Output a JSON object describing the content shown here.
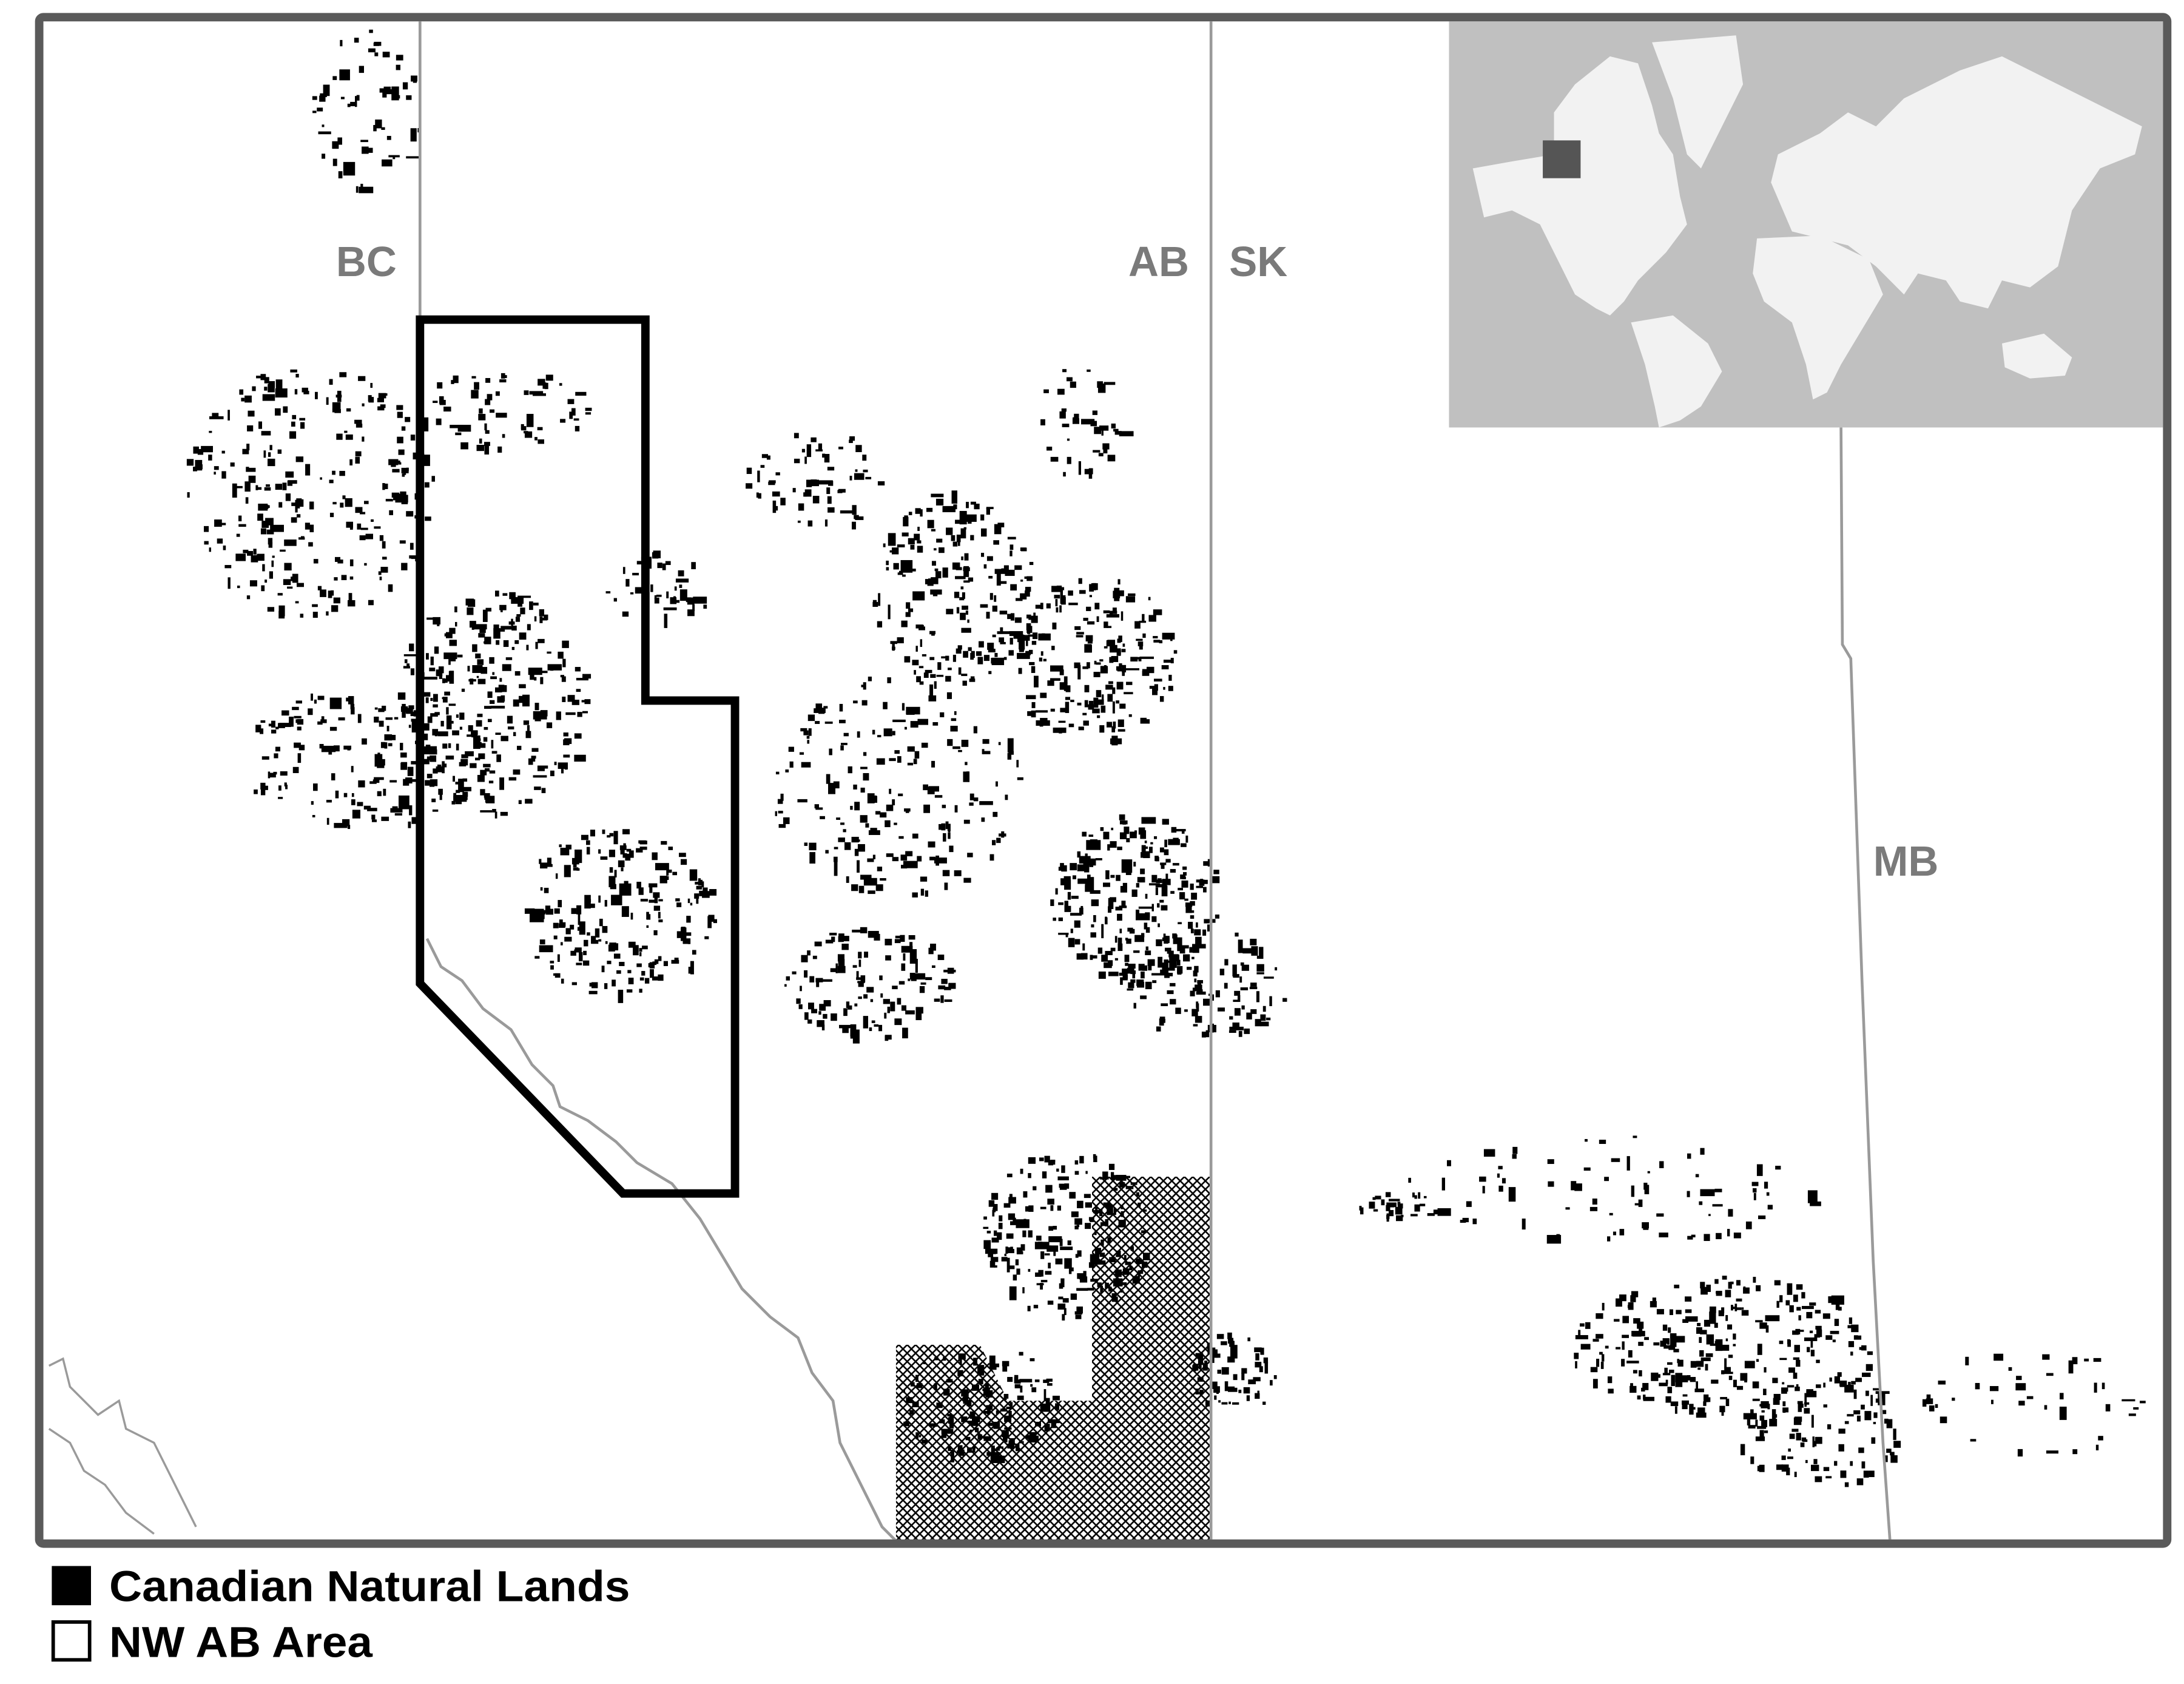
{
  "map": {
    "province_labels": [
      "BC",
      "AB",
      "SK",
      "MB"
    ],
    "colors": {
      "frame": "#5a5a5a",
      "lands": "#000000",
      "boundary": "#9a9a9a",
      "label": "#7a7a7a",
      "inset_ocean": "#c0c0c0",
      "inset_land": "#f2f2f2",
      "inset_locator": "#555555"
    },
    "inset": {
      "description_visible": false
    }
  },
  "legend": {
    "items": [
      {
        "label": "Canadian Natural Lands",
        "swatch": "filled-black-square"
      },
      {
        "label": "NW AB Area",
        "swatch": "outlined-square"
      }
    ]
  }
}
